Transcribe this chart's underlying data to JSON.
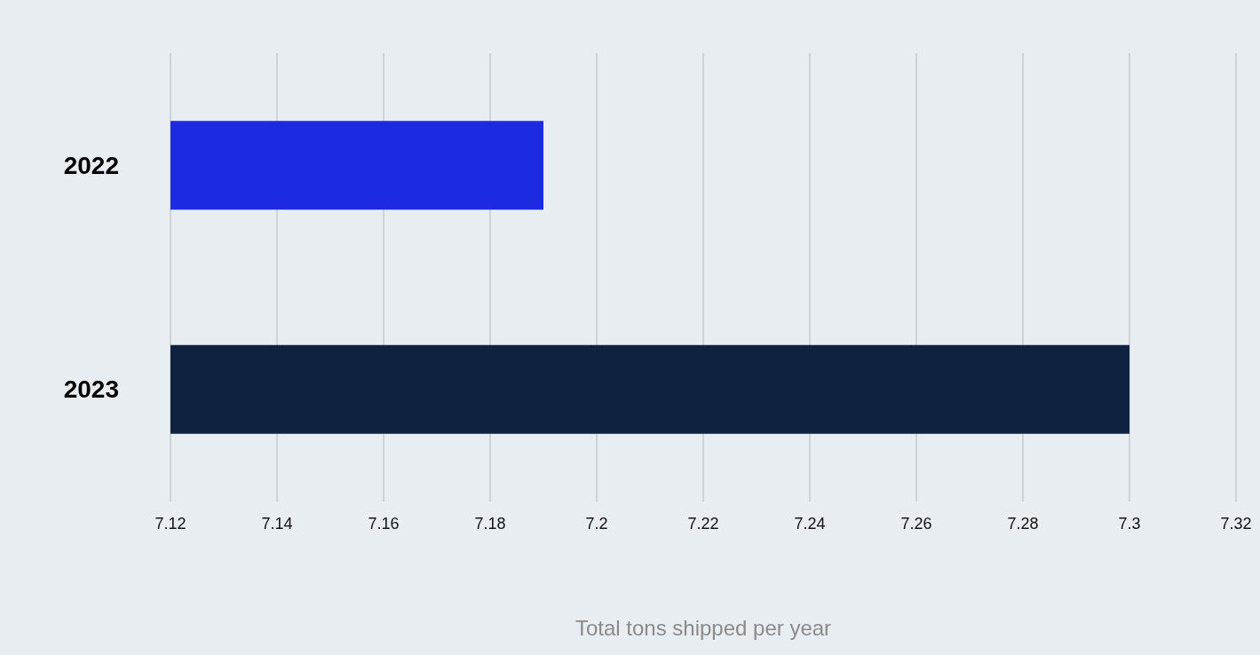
{
  "chart_data": {
    "type": "bar",
    "orientation": "horizontal",
    "categories": [
      "2022",
      "2023"
    ],
    "colors": [
      "#1c2be0",
      "#0f2341"
    ],
    "values": [
      7.19,
      7.3
    ],
    "xlabel": "Total tons shipped per year",
    "xlim": [
      7.12,
      7.32
    ],
    "xticks": [
      7.12,
      7.14,
      7.16,
      7.18,
      7.2,
      7.22,
      7.24,
      7.26,
      7.28,
      7.3,
      7.32
    ],
    "grid": "x"
  }
}
